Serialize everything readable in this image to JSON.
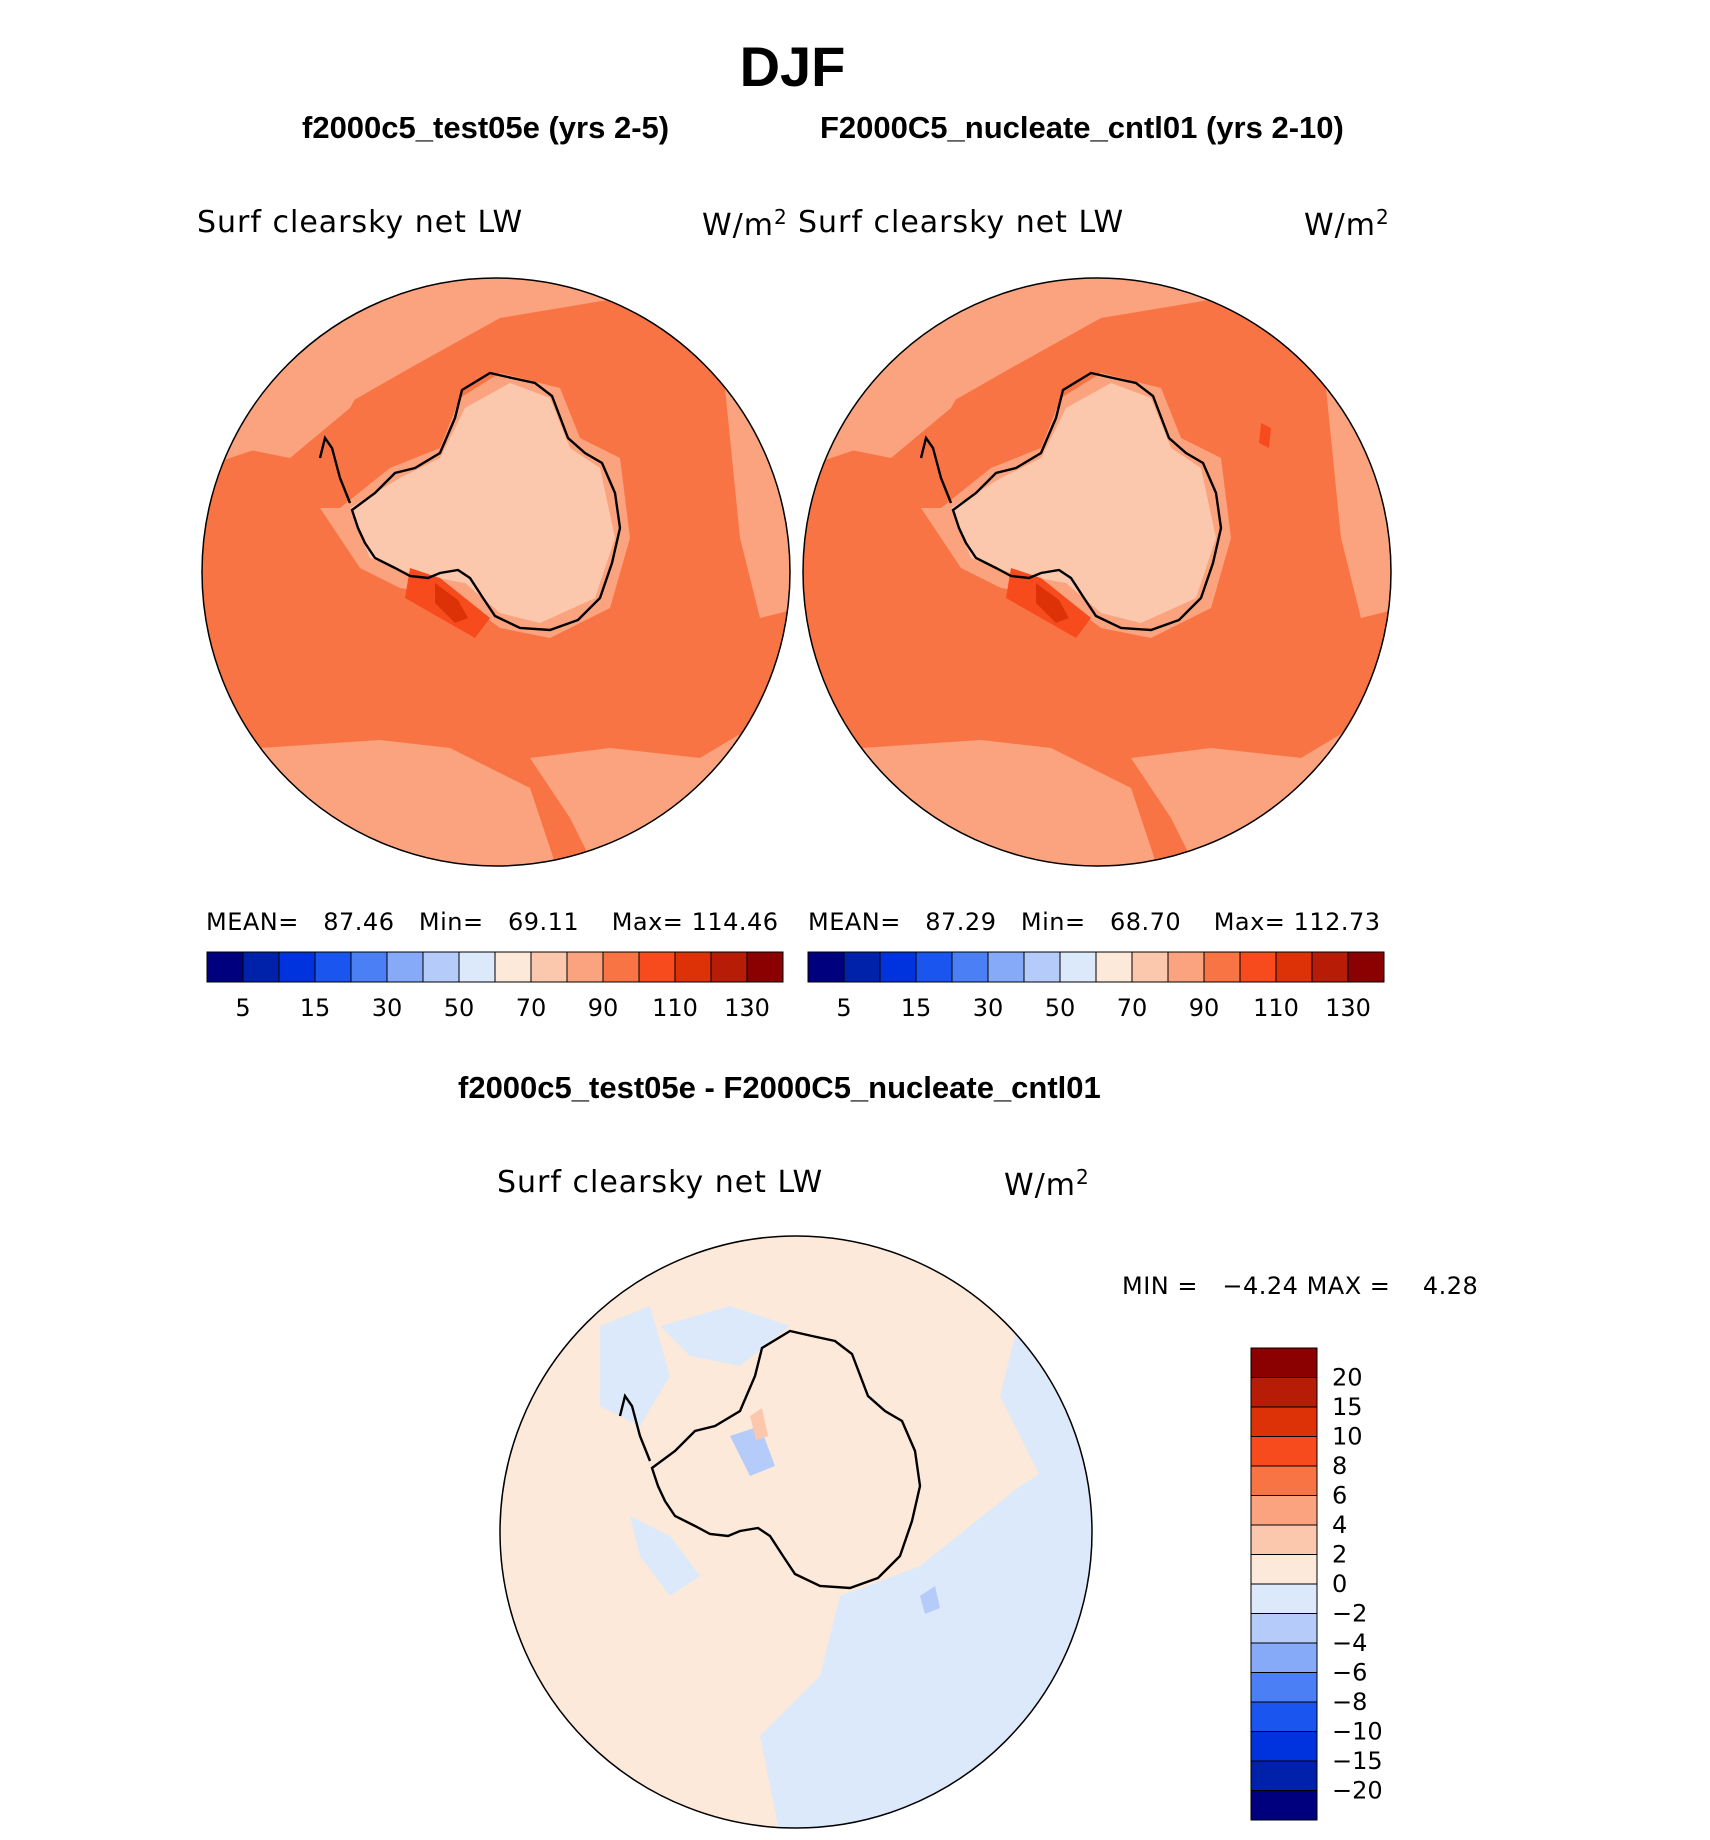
{
  "figure": {
    "title": "DJF",
    "diff_title": "f2000c5_test05e - F2000C5_nucleate_cntl01"
  },
  "panels": [
    {
      "case_title": "f2000c5_test05e (yrs 2-5)",
      "variable": "Surf clearsky net LW",
      "units_base": "W/m",
      "units_exp": "2",
      "mean_label": "MEAN=",
      "mean": "87.46",
      "min_label": "Min=",
      "min": "69.11",
      "max_label": "Max=",
      "max": "114.46"
    },
    {
      "case_title": "F2000C5_nucleate_cntl01 (yrs 2-10)",
      "variable": "Surf clearsky net LW",
      "units_base": "W/m",
      "units_exp": "2",
      "mean_label": "MEAN=",
      "mean": "87.29",
      "min_label": "Min=",
      "min": "68.70",
      "max_label": "Max=",
      "max": "112.73"
    }
  ],
  "diff_panel": {
    "variable": "Surf clearsky net LW",
    "units_base": "W/m",
    "units_exp": "2",
    "min_label": "MIN =",
    "min": "−4.24",
    "max_label": "MAX =",
    "max": "4.28"
  },
  "colors": {
    "absolute_palette": [
      "#00007f",
      "#0022aa",
      "#0033dd",
      "#1a55f0",
      "#4a7ff5",
      "#86aaf7",
      "#b5ccfa",
      "#dbe9fb",
      "#fde9d9",
      "#fcc8ad",
      "#fba37e",
      "#f97445",
      "#f74b1e",
      "#dd3208",
      "#b71d06",
      "#8b0000"
    ],
    "diff_palette": [
      "#00007f",
      "#0022aa",
      "#0033dd",
      "#1a55f0",
      "#4a7ff5",
      "#86aaf7",
      "#b5ccfa",
      "#dbe9fb",
      "#fde9d9",
      "#fcc8ad",
      "#fba37e",
      "#f97445",
      "#f74b1e",
      "#dd3208",
      "#b71d06",
      "#8b0000"
    ]
  },
  "chart_data": [
    {
      "type": "heatmap",
      "projection": "south-polar-stereographic",
      "title": "f2000c5_test05e (yrs 2-5)",
      "variable": "Surf clearsky net LW",
      "units": "W/m2",
      "stats": {
        "mean": 87.46,
        "min": 69.11,
        "max": 114.46
      },
      "colorbar_levels": [
        5,
        10,
        15,
        20,
        30,
        40,
        50,
        60,
        70,
        80,
        90,
        100,
        110,
        120,
        130
      ],
      "colorbar_tick_labels": [
        "5",
        "15",
        "30",
        "50",
        "70",
        "90",
        "110",
        "130"
      ]
    },
    {
      "type": "heatmap",
      "projection": "south-polar-stereographic",
      "title": "F2000C5_nucleate_cntl01 (yrs 2-10)",
      "variable": "Surf clearsky net LW",
      "units": "W/m2",
      "stats": {
        "mean": 87.29,
        "min": 68.7,
        "max": 112.73
      },
      "colorbar_levels": [
        5,
        10,
        15,
        20,
        30,
        40,
        50,
        60,
        70,
        80,
        90,
        100,
        110,
        120,
        130
      ],
      "colorbar_tick_labels": [
        "5",
        "15",
        "30",
        "50",
        "70",
        "90",
        "110",
        "130"
      ]
    },
    {
      "type": "heatmap",
      "projection": "south-polar-stereographic",
      "title": "f2000c5_test05e - F2000C5_nucleate_cntl01",
      "variable": "Surf clearsky net LW",
      "units": "W/m2",
      "stats": {
        "min": -4.24,
        "max": 4.28
      },
      "colorbar_levels": [
        -20,
        -15,
        -10,
        -8,
        -6,
        -4,
        -2,
        0,
        2,
        4,
        6,
        8,
        10,
        15,
        20
      ],
      "colorbar_tick_labels": [
        "20",
        "15",
        "10",
        "8",
        "6",
        "4",
        "2",
        "0",
        "−2",
        "−4",
        "−6",
        "−8",
        "−10",
        "−15",
        "−20"
      ]
    }
  ]
}
